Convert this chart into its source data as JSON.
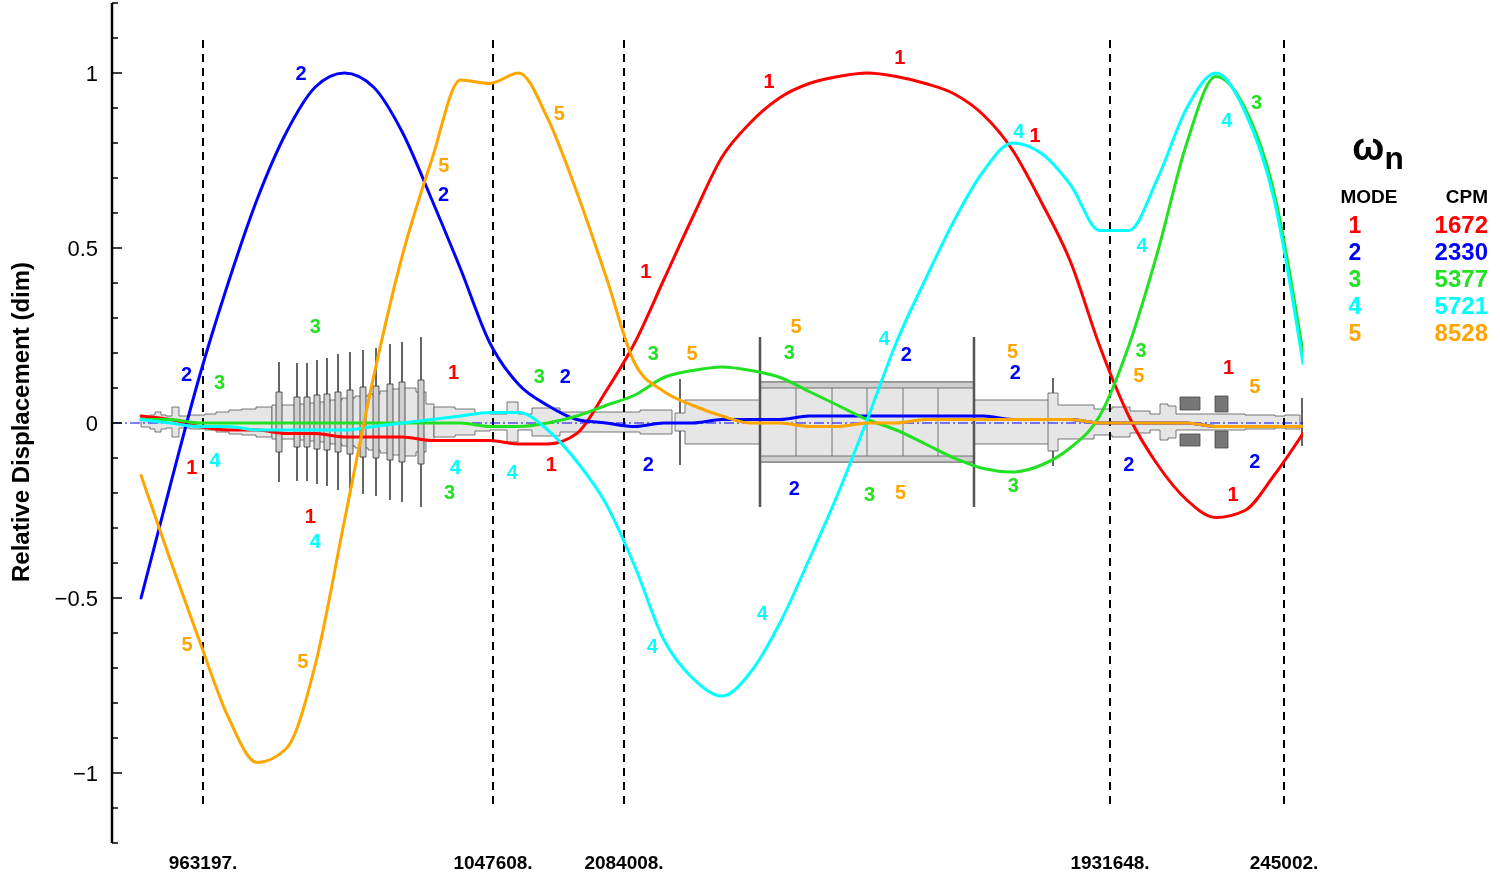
{
  "chart_data": {
    "type": "line",
    "ylabel": "Relative Displacement (dim)",
    "legend_title": "ω$_{n}$",
    "legend": "top right",
    "tick_labels": "y",
    "categories": [
      null,
      null,
      null,
      null,
      null,
      null,
      null,
      null,
      null,
      null,
      null,
      null,
      null,
      null,
      null,
      null,
      null,
      null,
      null,
      null,
      null,
      null,
      null,
      null,
      null,
      null,
      null,
      null,
      null,
      null,
      null,
      null,
      null,
      null,
      null,
      null,
      null,
      null,
      null,
      null,
      null
    ],
    "series": [
      {
        "name": "1",
        "color": "#ff0000",
        "values": [
          0.02,
          0.01,
          -0.01,
          -0.02,
          -0.02,
          -0.03,
          -0.03,
          -0.04,
          -0.04,
          -0.04,
          -0.05,
          -0.05,
          -0.05,
          -0.06,
          -0.06,
          -0.03,
          0.09,
          0.23,
          0.41,
          0.59,
          0.76,
          0.86,
          0.93,
          0.97,
          0.99,
          1.0,
          0.99,
          0.97,
          0.94,
          0.88,
          0.78,
          0.63,
          0.46,
          0.22,
          0.02,
          -0.12,
          -0.22,
          -0.27,
          -0.25,
          -0.15,
          -0.03
        ]
      },
      {
        "name": "2",
        "color": "#0000ff",
        "values": [
          -0.5,
          -0.18,
          0.13,
          0.4,
          0.64,
          0.83,
          0.96,
          1.0,
          0.96,
          0.83,
          0.64,
          0.44,
          0.23,
          0.11,
          0.05,
          0.01,
          0.0,
          -0.01,
          0.0,
          0.0,
          0.01,
          0.01,
          0.01,
          0.02,
          0.02,
          0.02,
          0.02,
          0.02,
          0.02,
          0.02,
          0.01,
          0.01,
          0.01,
          0.0,
          0.0,
          0.0,
          0.0,
          -0.01,
          -0.01,
          -0.01,
          -0.01
        ]
      },
      {
        "name": "3",
        "color": "#22e022",
        "values": [
          0.01,
          0.01,
          0.0,
          0.0,
          0.0,
          0.0,
          0.0,
          0.0,
          0.0,
          0.0,
          0.0,
          0.0,
          -0.01,
          -0.01,
          0.0,
          0.02,
          0.05,
          0.08,
          0.13,
          0.15,
          0.16,
          0.15,
          0.13,
          0.09,
          0.05,
          0.01,
          -0.02,
          -0.06,
          -0.1,
          -0.13,
          -0.14,
          -0.12,
          -0.07,
          0.02,
          0.22,
          0.49,
          0.8,
          0.99,
          0.9,
          0.66,
          0.2
        ]
      },
      {
        "name": "4",
        "color": "#00ffff",
        "values": [
          0.01,
          0.0,
          -0.01,
          -0.01,
          -0.02,
          -0.02,
          -0.02,
          -0.02,
          -0.01,
          0.0,
          0.01,
          0.02,
          0.03,
          0.03,
          -0.02,
          -0.11,
          -0.23,
          -0.41,
          -0.62,
          -0.73,
          -0.78,
          -0.71,
          -0.57,
          -0.39,
          -0.2,
          0.01,
          0.23,
          0.41,
          0.58,
          0.72,
          0.8,
          0.77,
          0.68,
          0.55,
          0.55,
          0.7,
          0.9,
          1.0,
          0.89,
          0.64,
          0.17
        ]
      },
      {
        "name": "5",
        "color": "#ffa500",
        "values": [
          -0.15,
          -0.39,
          -0.62,
          -0.84,
          -0.97,
          -0.93,
          -0.69,
          -0.28,
          0.13,
          0.48,
          0.75,
          0.98,
          0.97,
          1.0,
          0.87,
          0.66,
          0.42,
          0.17,
          0.09,
          0.05,
          0.02,
          0.0,
          0.0,
          -0.01,
          -0.01,
          0.0,
          0.0,
          0.01,
          0.01,
          0.01,
          0.01,
          0.01,
          0.01,
          0.0,
          0.0,
          0.0,
          0.0,
          -0.01,
          -0.01,
          -0.01,
          -0.01
        ]
      }
    ],
    "ylim": [
      -1.2,
      1.2
    ],
    "yticks": [
      {
        "value": -1.2,
        "label": null
      },
      {
        "value": -1.1,
        "label": null
      },
      {
        "value": -1,
        "label": "−1"
      },
      {
        "value": -0.9,
        "label": null
      },
      {
        "value": -0.8,
        "label": null
      },
      {
        "value": -0.7,
        "label": null
      },
      {
        "value": -0.6,
        "label": null
      },
      {
        "value": -0.5,
        "label": "−0.5"
      },
      {
        "value": -0.4,
        "label": null
      },
      {
        "value": -0.3,
        "label": null
      },
      {
        "value": -0.2,
        "label": null
      },
      {
        "value": -0.1,
        "label": null
      },
      0,
      {
        "value": 0.1,
        "label": null
      },
      {
        "value": 0.2,
        "label": null
      },
      {
        "value": 0.3,
        "label": null
      },
      {
        "value": 0.4,
        "label": null
      },
      0.5,
      {
        "value": 0.6,
        "label": null
      },
      {
        "value": 0.7,
        "label": null
      },
      {
        "value": 0.8,
        "label": null
      },
      {
        "value": 0.9,
        "label": null
      },
      1,
      {
        "value": 1.1,
        "label": null
      },
      {
        "value": 1.2,
        "label": null
      }
    ],
    "ref_lines": [
      {
        "axis": "y",
        "value": 0,
        "color": "#0000ff",
        "line_style": "dashed"
      }
    ],
    "annotations": [
      "963197.",
      "1047608.",
      "2084008.",
      "1931648.",
      "245002.",
      "MODE",
      "CPM",
      "1672",
      "2330",
      "5377",
      "5721",
      "8528"
    ]
  }
}
